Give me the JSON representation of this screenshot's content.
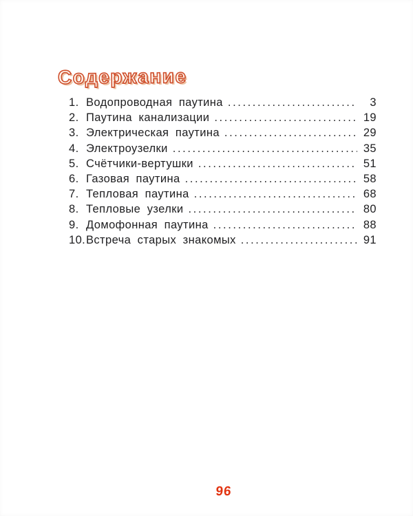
{
  "title": "Содержание",
  "toc": {
    "items": [
      {
        "num": "1.",
        "label": "Водопроводная паутина",
        "page": "3"
      },
      {
        "num": "2.",
        "label": "Паутина канализации",
        "page": "19"
      },
      {
        "num": "3.",
        "label": "Электрическая паутина",
        "page": "29"
      },
      {
        "num": "4.",
        "label": "Электроузелки",
        "page": "35"
      },
      {
        "num": "5.",
        "label": "Счётчики-вертушки",
        "page": "51"
      },
      {
        "num": "6.",
        "label": "Газовая паутина",
        "page": "58"
      },
      {
        "num": "7.",
        "label": "Тепловая паутина",
        "page": "68"
      },
      {
        "num": "8.",
        "label": "Тепловые узелки",
        "page": "80"
      },
      {
        "num": "9.",
        "label": "Домофонная паутина",
        "page": "88"
      },
      {
        "num": "10.",
        "label": "Встреча старых знакомых",
        "page": "91"
      }
    ]
  },
  "page_number": "96",
  "colors": {
    "accent": "#e23310",
    "title_outline": "#cf4f2d",
    "title_fill": "#fff7ee",
    "text": "#1e1e20"
  }
}
